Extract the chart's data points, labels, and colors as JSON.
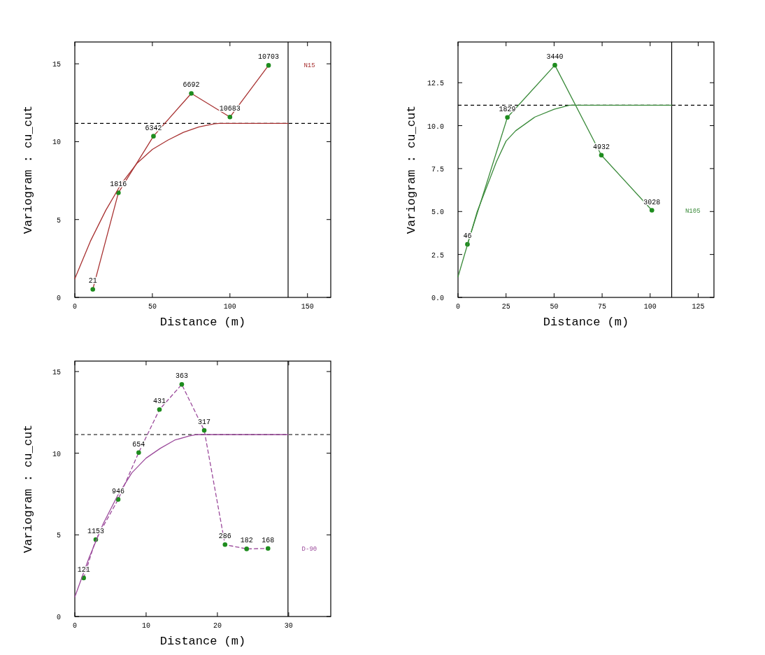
{
  "chart_data": [
    {
      "type": "line",
      "xlabel": "Distance (m)",
      "ylabel": "Variogram : cu_cut",
      "xlim": [
        0,
        165
      ],
      "ylim": [
        0,
        16.4
      ],
      "xticks": [
        0,
        50,
        100,
        150
      ],
      "yticks": [
        0,
        5,
        10,
        15
      ],
      "grid": false,
      "series": [
        {
          "name": "N15",
          "color": "#a83232",
          "marker": "circle",
          "line_style": "solid",
          "colors": [
            "#1e8c1e",
            "#1e8c1e",
            "#1e8c1e",
            "#1e8c1e",
            "#1e8c1e",
            "#1e8c1e"
          ],
          "x": [
            11.6,
            28.1,
            50.7,
            75.1,
            100,
            124.9
          ],
          "values": [
            0.52,
            6.72,
            10.35,
            13.1,
            11.58,
            14.9
          ]
        },
        {
          "type": "line",
          "color": "#a83232",
          "marker": "none",
          "line_style": "solid",
          "x": [
            0,
            10,
            20,
            30,
            40,
            50,
            60,
            70,
            80,
            90,
            93,
            137.5
          ],
          "values": [
            1.2,
            3.6,
            5.6,
            7.3,
            8.6,
            9.5,
            10.1,
            10.6,
            10.95,
            11.15,
            11.17,
            11.17
          ]
        }
      ],
      "annotations": [
        {
          "text": "21",
          "x": 11.6,
          "y": 0.52
        },
        {
          "text": "1816",
          "x": 28.1,
          "y": 6.72
        },
        {
          "text": "6342",
          "x": 50.7,
          "y": 10.35
        },
        {
          "text": "6692",
          "x": 75.1,
          "y": 13.1
        },
        {
          "text": "10683",
          "x": 100,
          "y": 11.58
        },
        {
          "text": "10703",
          "x": 124.9,
          "y": 14.9
        }
      ],
      "ref_lines": [
        {
          "axis": "y",
          "value": 11.17,
          "color": "#000000",
          "line_style": "dashed"
        },
        {
          "axis": "x",
          "value": 137.5,
          "color": "#000000",
          "line_style": "solid"
        }
      ]
    },
    {
      "type": "line",
      "xlabel": "Distance (m)",
      "ylabel": "Variogram : cu_cut",
      "xlim": [
        0,
        133.2
      ],
      "ylim": [
        0,
        14.87
      ],
      "xticks": [
        0,
        25,
        50,
        75,
        100,
        125
      ],
      "yticks": [
        {
          "value": 0,
          "label": "0.0"
        },
        2.5,
        {
          "value": 5,
          "label": "5.0"
        },
        7.5,
        {
          "value": 10,
          "label": "10.0"
        },
        12.5
      ],
      "grid": false,
      "series": [
        {
          "name": "N105",
          "color": "#3a8a3a",
          "marker": "circle",
          "line_style": "solid",
          "colors": [
            "#1e8c1e",
            "#1e8c1e",
            "#1e8c1e",
            "#1e8c1e",
            "#1e8c1e"
          ],
          "x": [
            4.9,
            25.7,
            50.4,
            74.6,
            100.9
          ],
          "values": [
            3.09,
            10.48,
            13.52,
            8.28,
            5.07
          ]
        },
        {
          "type": "line",
          "color": "#3a8a3a",
          "marker": "none",
          "line_style": "solid",
          "x": [
            0,
            10,
            20,
            25,
            30,
            40,
            50,
            58,
            111.2
          ],
          "values": [
            1.2,
            5.0,
            7.9,
            9.1,
            9.7,
            10.5,
            10.95,
            11.19,
            11.19
          ]
        }
      ],
      "annotations": [
        {
          "text": "46",
          "x": 4.9,
          "y": 3.09
        },
        {
          "text": "1829",
          "x": 25.7,
          "y": 10.48
        },
        {
          "text": "3440",
          "x": 50.4,
          "y": 13.52
        },
        {
          "text": "4932",
          "x": 74.6,
          "y": 8.28
        },
        {
          "text": "3028",
          "x": 100.9,
          "y": 5.07
        }
      ],
      "ref_lines": [
        {
          "axis": "y",
          "value": 11.19,
          "color": "#000000",
          "line_style": "dashed"
        },
        {
          "axis": "x",
          "value": 111.2,
          "color": "#000000",
          "line_style": "solid"
        }
      ]
    },
    {
      "type": "line",
      "xlabel": "Distance (m)",
      "ylabel": "Variogram : cu_cut",
      "xlim": [
        0,
        35.9
      ],
      "ylim": [
        0,
        15.64
      ],
      "xticks": [
        0,
        10,
        20,
        30
      ],
      "yticks": [
        0,
        5,
        10,
        15
      ],
      "grid": false,
      "series": [
        {
          "name": "D-90",
          "color": "#9b4a9b",
          "marker": "circle",
          "line_style": "dashed",
          "colors": [
            "#1e8c1e",
            "#1e8c1e",
            "#1e8c1e",
            "#1e8c1e",
            "#1e8c1e",
            "#1e8c1e",
            "#1e8c1e",
            "#1e8c1e",
            "#1e8c1e",
            "#1e8c1e"
          ],
          "x": [
            1.24,
            2.94,
            6.08,
            8.96,
            11.87,
            15.0,
            18.15,
            21.07,
            24.1,
            27.1
          ],
          "values": [
            2.36,
            4.71,
            7.17,
            10.04,
            12.67,
            14.21,
            11.4,
            4.4,
            4.14,
            4.17
          ]
        },
        {
          "type": "line",
          "color": "#9b4a9b",
          "marker": "none",
          "line_style": "solid",
          "x": [
            0,
            2,
            4,
            6,
            8,
            10,
            12,
            14,
            16,
            17,
            29.9
          ],
          "values": [
            1.2,
            3.6,
            5.7,
            7.4,
            8.8,
            9.7,
            10.3,
            10.8,
            11.05,
            11.14,
            11.14
          ]
        }
      ],
      "annotations": [
        {
          "text": "121",
          "x": 1.24,
          "y": 2.36
        },
        {
          "text": "1153",
          "x": 2.94,
          "y": 4.71
        },
        {
          "text": "946",
          "x": 6.08,
          "y": 7.17
        },
        {
          "text": "654",
          "x": 8.96,
          "y": 10.04
        },
        {
          "text": "431",
          "x": 11.87,
          "y": 12.67
        },
        {
          "text": "363",
          "x": 15.0,
          "y": 14.21
        },
        {
          "text": "317",
          "x": 18.15,
          "y": 11.4
        },
        {
          "text": "286",
          "x": 21.07,
          "y": 4.4
        },
        {
          "text": "182",
          "x": 24.1,
          "y": 4.14
        },
        {
          "text": "168",
          "x": 27.1,
          "y": 4.17
        }
      ],
      "ref_lines": [
        {
          "axis": "y",
          "value": 11.14,
          "color": "#000000",
          "line_style": "dashed"
        },
        {
          "axis": "x",
          "value": 29.9,
          "color": "#000000",
          "line_style": "solid"
        }
      ]
    }
  ]
}
